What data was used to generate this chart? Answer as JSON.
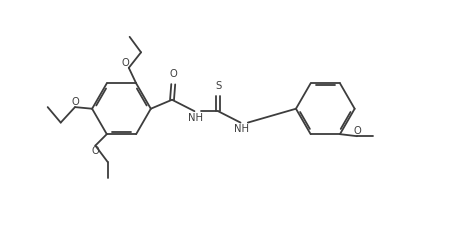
{
  "line_color": "#3d3d3d",
  "bg_color": "#ffffff",
  "line_width": 1.3,
  "font_size": 7.2,
  "figsize": [
    4.59,
    2.46
  ],
  "dpi": 100,
  "xlim": [
    -0.5,
    9.5
  ],
  "ylim": [
    -0.8,
    5.2
  ]
}
